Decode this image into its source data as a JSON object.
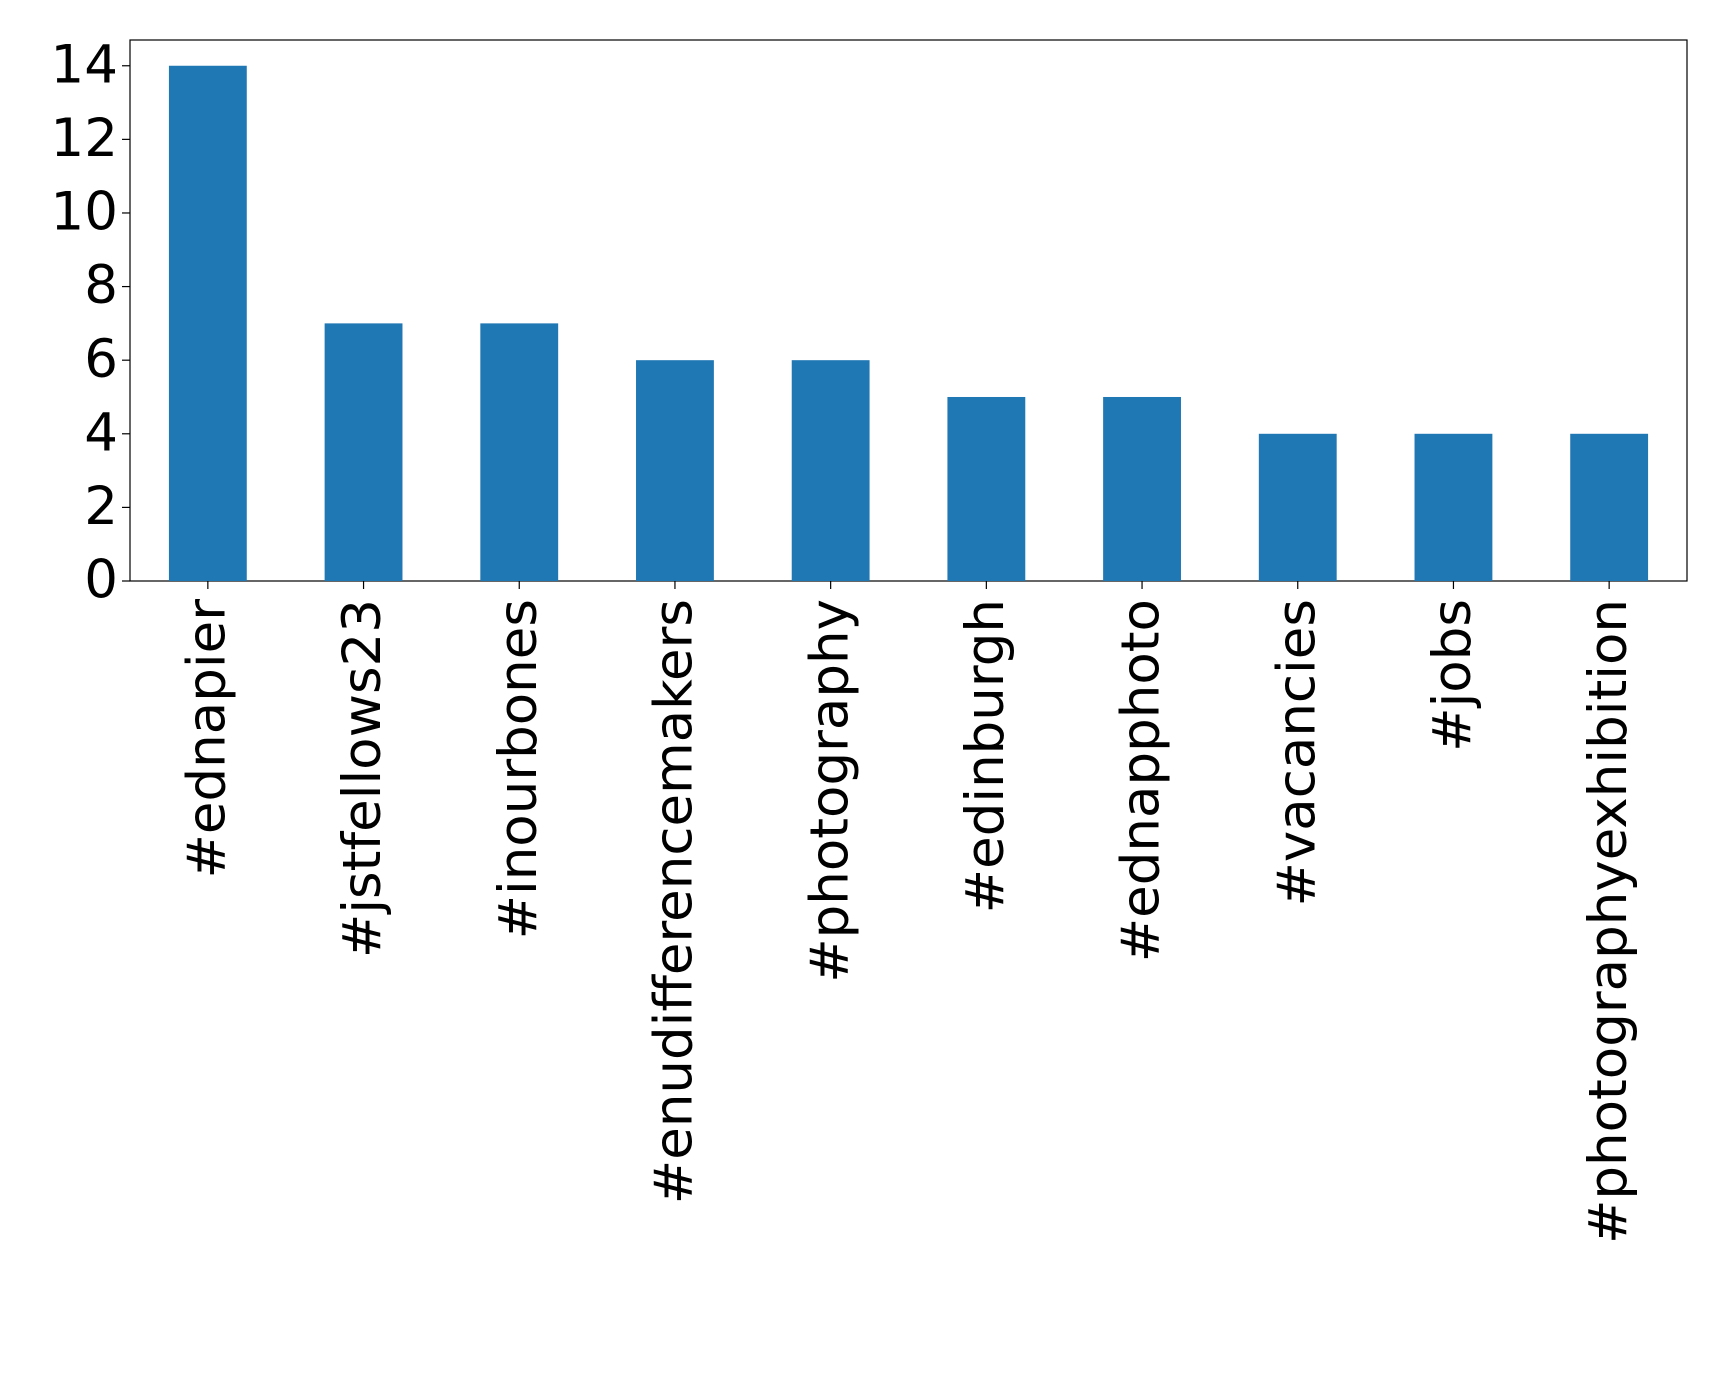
{
  "chart_data": {
    "type": "bar",
    "categories": [
      "#ednapier",
      "#jstfellows23",
      "#inourbones",
      "#enudifferencemakers",
      "#photography",
      "#edinburgh",
      "#ednapphoto",
      "#vacancies",
      "#jobs",
      "#photographyexhibition"
    ],
    "values": [
      14,
      7,
      7,
      6,
      6,
      5,
      5,
      4,
      4,
      4
    ],
    "color": "#1f77b4",
    "ylim": [
      0,
      14.7
    ],
    "yticks": [
      0,
      2,
      4,
      6,
      8,
      10,
      12,
      14
    ],
    "grid": false
  }
}
